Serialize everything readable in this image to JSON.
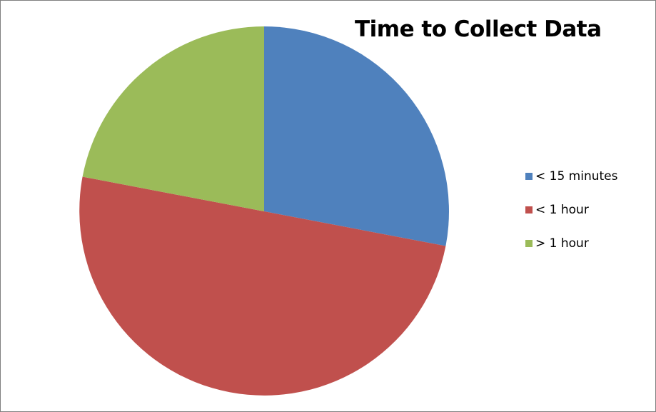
{
  "chart_data": {
    "type": "pie",
    "title": "Time to Collect Data",
    "categories": [
      "< 15 minutes",
      "< 1 hour",
      "> 1 hour"
    ],
    "values": [
      28,
      50,
      22
    ],
    "colors": [
      "#4f81bd",
      "#c0504d",
      "#9bbb59"
    ],
    "legend_position": "right",
    "start_angle_deg": 0,
    "direction": "clockwise"
  }
}
